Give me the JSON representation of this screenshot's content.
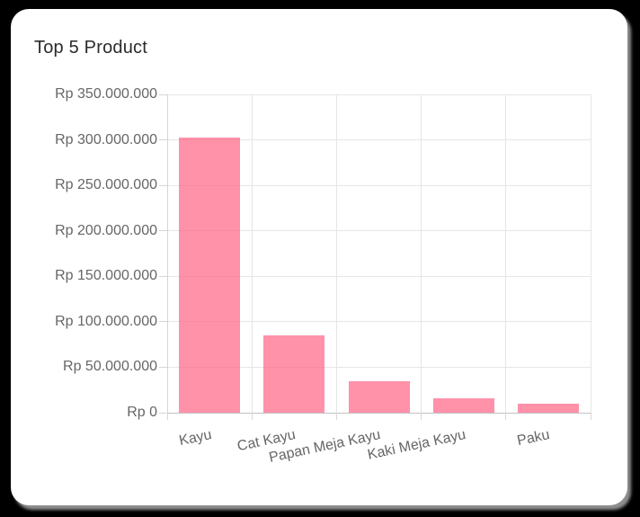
{
  "card": {
    "title": "Top 5 Product"
  },
  "chart_data": {
    "type": "bar",
    "title": "Top 5 Product",
    "categories": [
      "Kayu",
      "Cat Kayu",
      "Papan Meja Kayu",
      "Kaki Meja Kayu",
      "Paku"
    ],
    "values": [
      303000000,
      85000000,
      35000000,
      16000000,
      10000000
    ],
    "xlabel": "",
    "ylabel": "",
    "ylim": [
      0,
      350000000
    ],
    "y_tick_step": 50000000,
    "y_tick_labels": [
      "Rp 0",
      "Rp 50.000.000",
      "Rp 100.000.000",
      "Rp 150.000.000",
      "Rp 200.000.000",
      "Rp 250.000.000",
      "Rp 300.000.000",
      "Rp 350.000.000"
    ],
    "x_tick_rotation_deg": -12,
    "grid": true,
    "legend": false,
    "currency_prefix": "Rp",
    "colors": {
      "bar_fill": "#ff6384",
      "bar_fill_opacity": 0.7,
      "grid_line": "#e6e6e6",
      "zero_line": "#c2c2c2",
      "axis_border": "#d6d6d6",
      "tick_text": "#666666",
      "title_text": "#2b2b2b",
      "card_bg": "#ffffff",
      "page_bg": "#000000"
    }
  }
}
